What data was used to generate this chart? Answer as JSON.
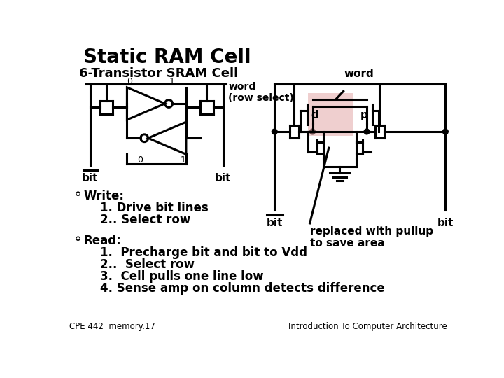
{
  "title": "Static RAM Cell",
  "subtitle": "6-Transistor SRAM Cell",
  "bg_color": "#ffffff",
  "title_fontsize": 20,
  "subtitle_fontsize": 13,
  "body_fontsize": 12,
  "footer_left": "CPE 442  memory.17",
  "footer_right": "Introduction To Computer Architecture",
  "write_label": "Write:",
  "write_items": [
    "1. Drive bit lines",
    "2.. Select row"
  ],
  "read_label": "Read:",
  "read_items": [
    "1.  Precharge bit and bit to Vdd",
    "2..  Select row",
    "3.  Cell pulls one line low",
    "4. Sense amp on column detects difference"
  ],
  "word_row_select": "word\n(row select)",
  "replaced_text": "replaced with pullup\nto save area",
  "word_label": "word",
  "bit_label": "bit"
}
